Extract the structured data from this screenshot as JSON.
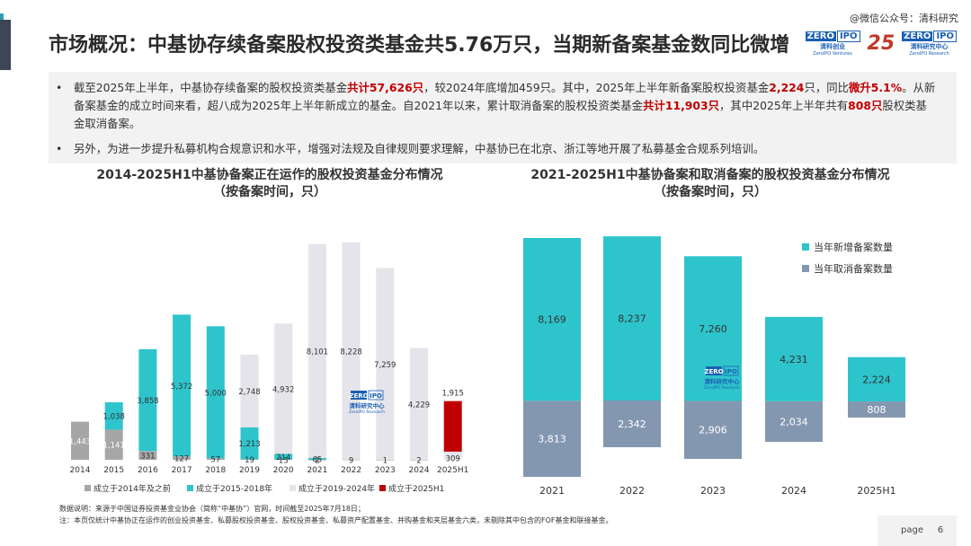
{
  "watermark": "@微信公众号：清科研究",
  "title": "市场概况：中基协存续备案股权投资类基金共5.76万只，当期新备案基金数同比微增",
  "logos": {
    "zero_a": "ZERO",
    "ipo_a": "IPO",
    "sub_a": "清科创业",
    "sub2_a": "ZeroIPO Ventures",
    "num25": "25",
    "zero_b": "ZERO",
    "ipo_b": "IPO",
    "sub_b": "清科研究中心",
    "sub2_b": "ZeroIPO Research"
  },
  "bullets": {
    "dot": "•",
    "b1_p1": "截至2025年上半年，中基协存续备案的股权投资类基金",
    "b1_r1": "共计57,626只",
    "b1_p2": "，较2024年底增加459只。其中，2025年上半年新备案股权投资基金",
    "b1_r2": "2,224",
    "b1_p3": "只，同比",
    "b1_r3": "微升5.1%",
    "b1_p4": "。从新备案基金的成立时间来看，超八成为2025年上半年新成立的基金。自2021年以来，累计取消备案的股权投资类基金",
    "b1_r4": "共计11,903只",
    "b1_p5": "，其中2025年上半年共有",
    "b1_r5": "808只",
    "b1_p6": "股权类基金取消备案。",
    "b2": "另外，为进一步提升私募机构合规意识和水平，增强对法规及自律规则要求理解，中基协已在北京、浙江等地开展了私募基金合规系列培训。"
  },
  "chart_data": [
    {
      "type": "bar",
      "title_line1": "2014-2025H1中基协备案正在运作的股权投资基金分布情况",
      "title_line2": "（按备案时间，只）",
      "categories": [
        "2014",
        "2015",
        "2016",
        "2017",
        "2018",
        "2019",
        "2020",
        "2021",
        "2022",
        "2023",
        "2024",
        "2025H1"
      ],
      "series": [
        {
          "name": "成立于2014年及之前",
          "color": "#a6a6a6",
          "values": [
            1443,
            1141,
            331,
            127,
            57,
            19,
            13,
            2,
            9,
            1,
            2,
            null
          ],
          "labels": [
            "1,443",
            "1,141",
            "331",
            "127",
            "57",
            "19",
            "13",
            "2",
            "9",
            "1",
            "2",
            ""
          ]
        },
        {
          "name": "成立于2015-2018年",
          "color": "#2ec4cc",
          "values": [
            null,
            1038,
            3858,
            5372,
            5000,
            1213,
            214,
            65,
            null,
            null,
            null,
            null
          ],
          "labels": [
            "",
            "1,038",
            "3,858",
            "5,372",
            "5,000",
            "1,213",
            "214",
            "65",
            "",
            "",
            "",
            ""
          ]
        },
        {
          "name": "成立于2019-2024年",
          "color": "#e4e4ea",
          "values": [
            null,
            null,
            null,
            null,
            null,
            2748,
            4932,
            8101,
            8228,
            7259,
            4229,
            309
          ],
          "labels": [
            "",
            "",
            "",
            "",
            "",
            "2,748",
            "4,932",
            "8,101",
            "8,228",
            "7,259",
            "4,229",
            "309"
          ]
        },
        {
          "name": "成立于2025H1",
          "color": "#c00000",
          "values": [
            null,
            null,
            null,
            null,
            null,
            null,
            null,
            null,
            null,
            null,
            null,
            1915
          ],
          "labels": [
            "",
            "",
            "",
            "",
            "",
            "",
            "",
            "",
            "",
            "",
            "",
            "1,915"
          ]
        }
      ]
    },
    {
      "type": "bar",
      "title_line1": "2021-2025H1中基协备案和取消备案的股权投资基金分布情况",
      "title_line2": "（按备案时间，只）",
      "categories": [
        "2021",
        "2022",
        "2023",
        "2024",
        "2025H1"
      ],
      "series": [
        {
          "name": "当年新增备案数量",
          "color": "#2ec4cc",
          "values": [
            8169,
            8237,
            7260,
            4231,
            2224
          ],
          "labels": [
            "8,169",
            "8,237",
            "7,260",
            "4,231",
            "2,224"
          ]
        },
        {
          "name": "当年取消备案数量",
          "color": "#8497b0",
          "values": [
            3813,
            2342,
            2906,
            2034,
            808
          ],
          "labels": [
            "3,813",
            "2,342",
            "2,906",
            "2,034",
            "808"
          ]
        }
      ]
    }
  ],
  "chart_watermark": {
    "zero": "ZERO",
    "ipo": "IPO",
    "sub": "清科研究中心",
    "sub2": "ZeroIPO Research"
  },
  "footnote1": "数据说明：来源于中国证券投资基金业协会（简称“中基协”）官网，时间截至2025年7月18日；",
  "footnote2": "注：本页仅统计中基协正在运作的创业投资基金、私募股权投资基金、股权投资基金、私募资产配置基金、并购基金和夹层基金六类，未剔除其中包含的FOF基金和联接基金。",
  "page": {
    "label": "page",
    "num": "6"
  }
}
